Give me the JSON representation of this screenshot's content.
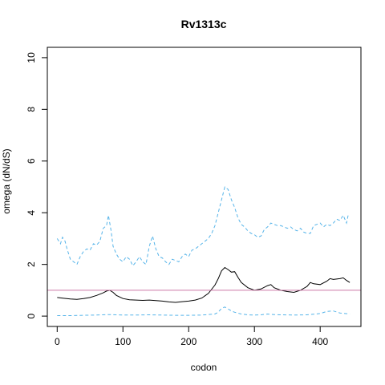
{
  "chart_data": {
    "type": "line",
    "title": "Rv1313c",
    "xlabel": "codon",
    "ylabel": "omega (dN/dS)",
    "xlim": [
      -15,
      462
    ],
    "ylim": [
      -0.4,
      10.4
    ],
    "xticks": [
      0,
      100,
      200,
      300,
      400
    ],
    "yticks": [
      0,
      2,
      4,
      6,
      8,
      10
    ],
    "reference_line": {
      "y": 1.0,
      "color": "#CC79A7"
    },
    "series": [
      {
        "style": "solid",
        "color": "#000000",
        "x": [
          0,
          10,
          20,
          30,
          40,
          50,
          60,
          70,
          75,
          80,
          85,
          90,
          100,
          110,
          120,
          130,
          140,
          150,
          160,
          170,
          180,
          190,
          200,
          210,
          220,
          230,
          240,
          245,
          250,
          255,
          260,
          265,
          270,
          275,
          280,
          290,
          300,
          310,
          320,
          325,
          330,
          340,
          350,
          360,
          370,
          380,
          385,
          390,
          400,
          410,
          415,
          420,
          430,
          435,
          440,
          445
        ],
        "y": [
          0.72,
          0.69,
          0.66,
          0.65,
          0.68,
          0.72,
          0.8,
          0.9,
          0.97,
          1.0,
          0.92,
          0.8,
          0.68,
          0.63,
          0.62,
          0.61,
          0.62,
          0.6,
          0.58,
          0.55,
          0.53,
          0.56,
          0.58,
          0.62,
          0.7,
          0.88,
          1.2,
          1.45,
          1.75,
          1.88,
          1.8,
          1.7,
          1.72,
          1.5,
          1.3,
          1.1,
          1.0,
          1.05,
          1.18,
          1.22,
          1.1,
          1.0,
          0.95,
          0.92,
          1.0,
          1.15,
          1.3,
          1.25,
          1.22,
          1.35,
          1.45,
          1.42,
          1.45,
          1.48,
          1.38,
          1.3
        ]
      },
      {
        "style": "dashed",
        "color": "#56B4E9",
        "x": [
          0,
          5,
          8,
          12,
          15,
          20,
          25,
          30,
          35,
          40,
          45,
          50,
          55,
          60,
          65,
          70,
          75,
          78,
          82,
          85,
          90,
          95,
          100,
          105,
          110,
          115,
          120,
          125,
          130,
          135,
          140,
          145,
          150,
          155,
          160,
          165,
          170,
          175,
          180,
          185,
          190,
          195,
          200,
          205,
          210,
          215,
          220,
          225,
          230,
          235,
          240,
          245,
          250,
          255,
          260,
          265,
          270,
          275,
          280,
          285,
          290,
          295,
          300,
          305,
          310,
          315,
          320,
          325,
          330,
          335,
          340,
          345,
          350,
          355,
          360,
          365,
          370,
          375,
          380,
          385,
          390,
          395,
          400,
          405,
          410,
          415,
          420,
          425,
          430,
          435,
          440,
          443
        ],
        "y": [
          3.0,
          2.8,
          3.05,
          2.9,
          2.6,
          2.2,
          2.1,
          2.0,
          2.3,
          2.5,
          2.6,
          2.55,
          2.8,
          2.75,
          2.9,
          3.4,
          3.5,
          3.9,
          3.3,
          2.7,
          2.4,
          2.2,
          2.1,
          2.3,
          2.2,
          1.95,
          2.1,
          2.3,
          2.1,
          2.0,
          2.7,
          3.1,
          2.6,
          2.3,
          2.25,
          2.1,
          2.0,
          2.2,
          2.15,
          2.1,
          2.3,
          2.4,
          2.3,
          2.55,
          2.6,
          2.7,
          2.8,
          2.9,
          3.0,
          3.2,
          3.5,
          4.0,
          4.5,
          5.0,
          4.9,
          4.5,
          4.2,
          3.8,
          3.55,
          3.45,
          3.3,
          3.2,
          3.15,
          3.05,
          3.1,
          3.35,
          3.45,
          3.6,
          3.55,
          3.5,
          3.5,
          3.45,
          3.4,
          3.45,
          3.35,
          3.3,
          3.4,
          3.25,
          3.2,
          3.2,
          3.5,
          3.55,
          3.6,
          3.45,
          3.55,
          3.5,
          3.6,
          3.75,
          3.7,
          3.9,
          3.6,
          3.95
        ]
      },
      {
        "style": "dashed",
        "color": "#56B4E9",
        "x": [
          0,
          20,
          40,
          60,
          80,
          100,
          120,
          140,
          160,
          180,
          200,
          220,
          240,
          245,
          250,
          255,
          260,
          265,
          270,
          280,
          290,
          300,
          310,
          320,
          330,
          340,
          360,
          380,
          400,
          410,
          420,
          430,
          445
        ],
        "y": [
          0.02,
          0.02,
          0.03,
          0.04,
          0.06,
          0.04,
          0.04,
          0.05,
          0.04,
          0.03,
          0.03,
          0.04,
          0.08,
          0.15,
          0.3,
          0.35,
          0.28,
          0.2,
          0.15,
          0.08,
          0.05,
          0.04,
          0.05,
          0.08,
          0.06,
          0.05,
          0.04,
          0.05,
          0.1,
          0.18,
          0.2,
          0.12,
          0.08
        ]
      }
    ]
  }
}
